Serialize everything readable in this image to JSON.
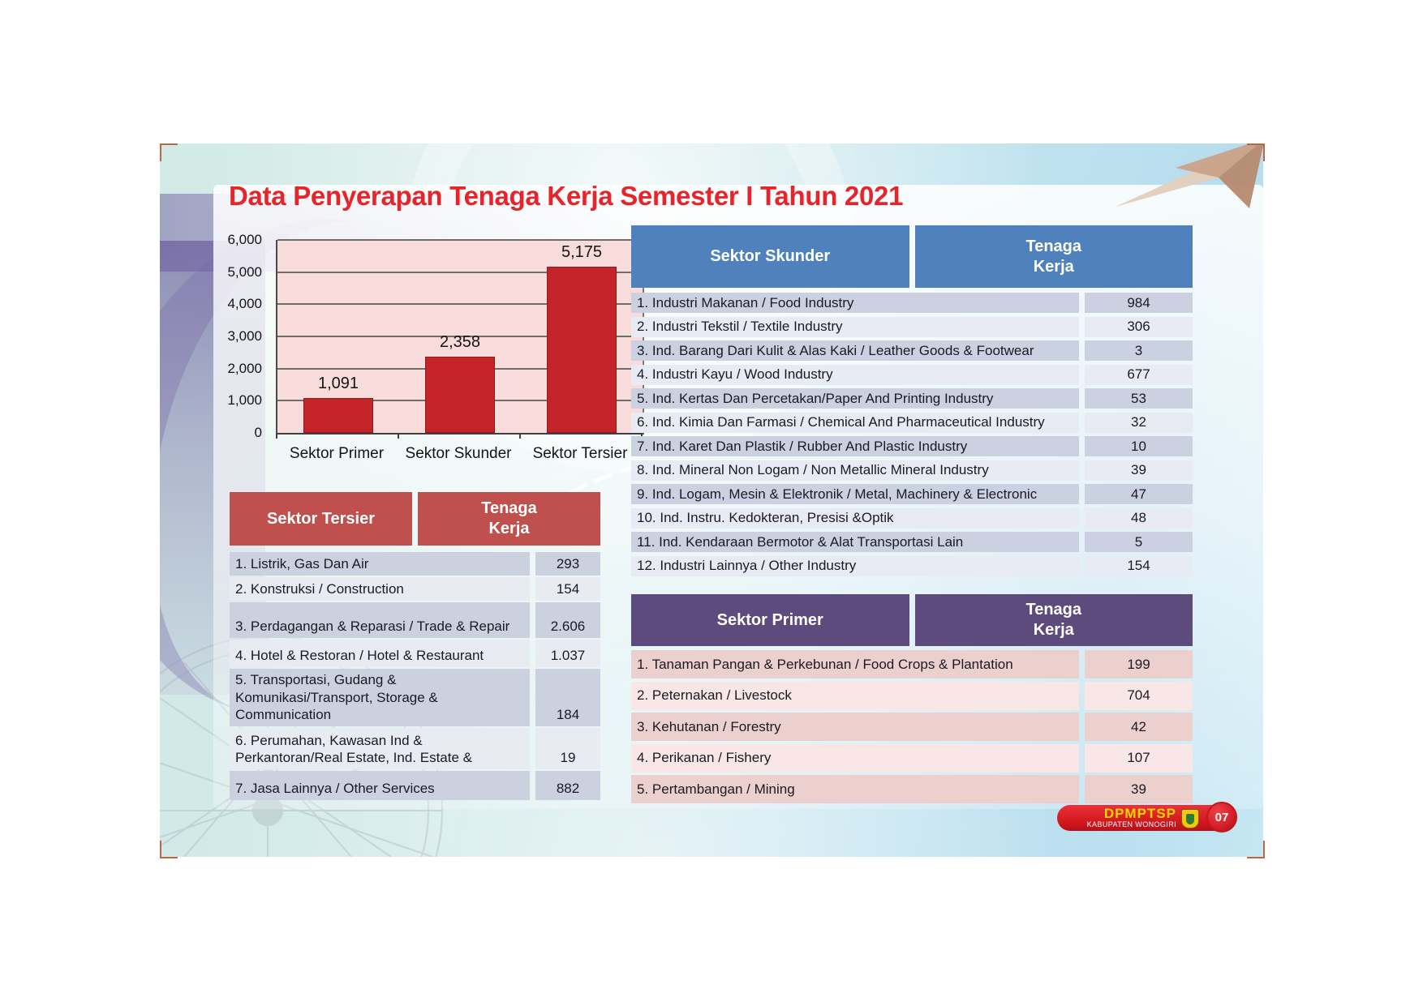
{
  "title": "Data Penyerapan Tenaga Kerja Semester I Tahun 2021",
  "chart_data": {
    "type": "bar",
    "categories": [
      "Sektor Primer",
      "Sektor Skunder",
      "Sektor Tersier"
    ],
    "values": [
      1091,
      2358,
      5175
    ],
    "value_labels": [
      "1,091",
      "2,358",
      "5,175"
    ],
    "ylim": [
      0,
      6000
    ],
    "yticks": [
      0,
      1000,
      2000,
      3000,
      4000,
      5000,
      6000
    ],
    "ytick_labels": [
      "0",
      "1,000",
      "2,000",
      "3,000",
      "4,000",
      "5,000",
      "6,000"
    ],
    "grid": true,
    "legend": false,
    "bar_color": "#c2242a",
    "plot_background": "#f8dcdb"
  },
  "tables": {
    "skunder": {
      "title": "Sektor Skunder",
      "value_header": "Tenaga Kerja",
      "header_color": "#4f81bd",
      "rows": [
        {
          "label": "1. Industri Makanan / Food Industry",
          "value": "984"
        },
        {
          "label": "2. Industri Tekstil / Textile Industry",
          "value": "306"
        },
        {
          "label": "3. Ind. Barang Dari Kulit & Alas Kaki / Leather Goods & Footwear",
          "value": "3"
        },
        {
          "label": "4. Industri Kayu / Wood Industry",
          "value": "677"
        },
        {
          "label": "5. Ind. Kertas Dan Percetakan/Paper And Printing Industry",
          "value": "53"
        },
        {
          "label": "6. Ind. Kimia Dan Farmasi / Chemical And Pharmaceutical Industry",
          "value": "32"
        },
        {
          "label": "7. Ind. Karet Dan Plastik / Rubber And Plastic Industry",
          "value": "10"
        },
        {
          "label": "8. Ind. Mineral Non Logam / Non Metallic Mineral Industry",
          "value": "39"
        },
        {
          "label": "9. Ind. Logam, Mesin & Elektronik / Metal, Machinery & Electronic",
          "value": "47"
        },
        {
          "label": "10. Ind. Instru. Kedokteran, Presisi &Optik",
          "value": "48"
        },
        {
          "label": "11. Ind. Kendaraan Bermotor & Alat Transportasi Lain",
          "value": "5"
        },
        {
          "label": "12. Industri Lainnya / Other Industry",
          "value": "154"
        }
      ]
    },
    "tersier": {
      "title": "Sektor Tersier",
      "value_header": "Tenaga Kerja",
      "header_color": "#c0504d",
      "rows": [
        {
          "label": "1. Listrik, Gas Dan Air",
          "value": "293"
        },
        {
          "label": "2. Konstruksi / Construction",
          "value": "154"
        },
        {
          "label": "3. Perdagangan & Reparasi / Trade & Repair",
          "value": "2.606"
        },
        {
          "label": "4. Hotel & Restoran / Hotel & Restaurant",
          "value": "1.037"
        },
        {
          "label": "5. Transportasi, Gudang & Komunikasi/Transport, Storage & Communication",
          "value": "184"
        },
        {
          "label": "6. Perumahan, Kawasan Ind & Perkantoran/Real Estate, Ind. Estate &",
          "value": "19"
        },
        {
          "label": "7. Jasa Lainnya / Other Services",
          "value": "882"
        }
      ]
    },
    "primer": {
      "title": "Sektor Primer",
      "value_header": "Tenaga Kerja",
      "header_color": "#5d4b7e",
      "rows": [
        {
          "label": "1. Tanaman Pangan & Perkebunan / Food Crops & Plantation",
          "value": "199"
        },
        {
          "label": "2. Peternakan / Livestock",
          "value": "704"
        },
        {
          "label": "3. Kehutanan / Forestry",
          "value": "42"
        },
        {
          "label": "4. Perikanan / Fishery",
          "value": "107"
        },
        {
          "label": "5. Pertambangan / Mining",
          "value": "39"
        }
      ]
    }
  },
  "footer_badge": {
    "org": "DPMPTSP",
    "region": "KABUPATEN WONOGIRI",
    "page_number": "07",
    "badge_color": "#d6222a",
    "org_color": "#ffd400"
  }
}
